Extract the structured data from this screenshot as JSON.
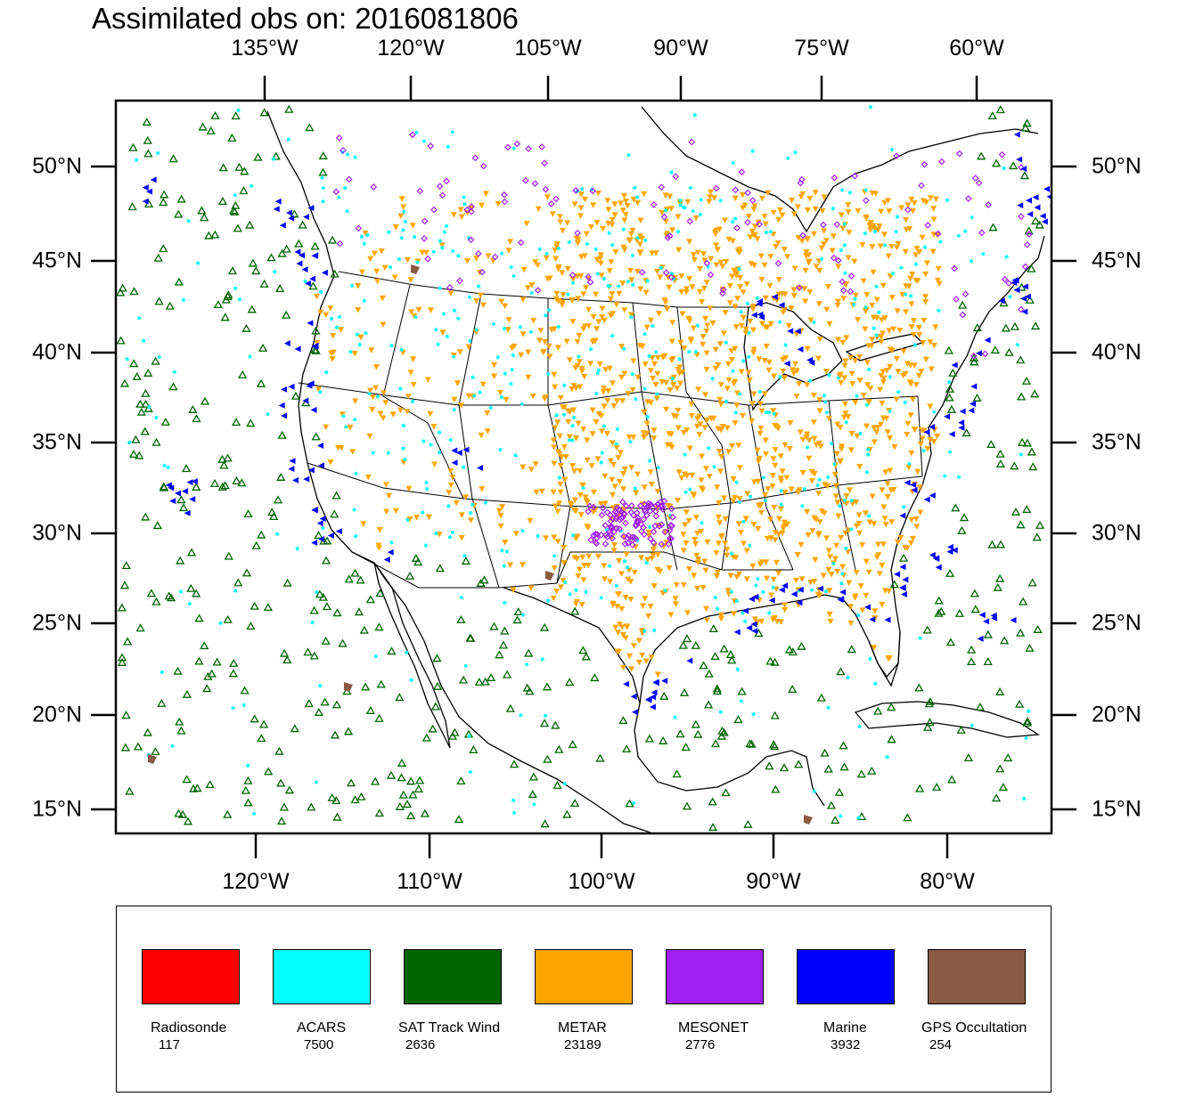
{
  "title": "Assimilated obs on: 2016081806",
  "top_axis_labels": [
    "135°W",
    "120°W",
    "105°W",
    "90°W",
    "75°W",
    "60°W"
  ],
  "bottom_axis_labels": [
    "120°W",
    "110°W",
    "100°W",
    "90°W",
    "80°W"
  ],
  "left_axis_labels": [
    "50°N",
    "45°N",
    "40°N",
    "35°N",
    "30°N",
    "25°N",
    "20°N",
    "15°N"
  ],
  "right_axis_labels": [
    "50°N",
    "45°N",
    "40°N",
    "35°N",
    "30°N",
    "25°N",
    "20°N",
    "15°N"
  ],
  "legend": [
    {
      "label": "Radiosonde",
      "count": "117",
      "color": "#ff0000"
    },
    {
      "label": "ACARS",
      "count": "7500",
      "color": "#00ffff"
    },
    {
      "label": "SAT Track Wind",
      "count": "2636",
      "color": "#006400"
    },
    {
      "label": "METAR",
      "count": "23189",
      "color": "#ffa500"
    },
    {
      "label": "MESONET",
      "count": "2776",
      "color": "#a020f0"
    },
    {
      "label": "Marine",
      "count": "3932",
      "color": "#0000ff"
    },
    {
      "label": "GPS Occultation",
      "count": "254",
      "color": "#8b5a44"
    }
  ],
  "map": {
    "projection": "Lambert Conformal (CONUS)",
    "extent_lon": [
      -127,
      -74
    ],
    "extent_lat": [
      14,
      53
    ]
  }
}
